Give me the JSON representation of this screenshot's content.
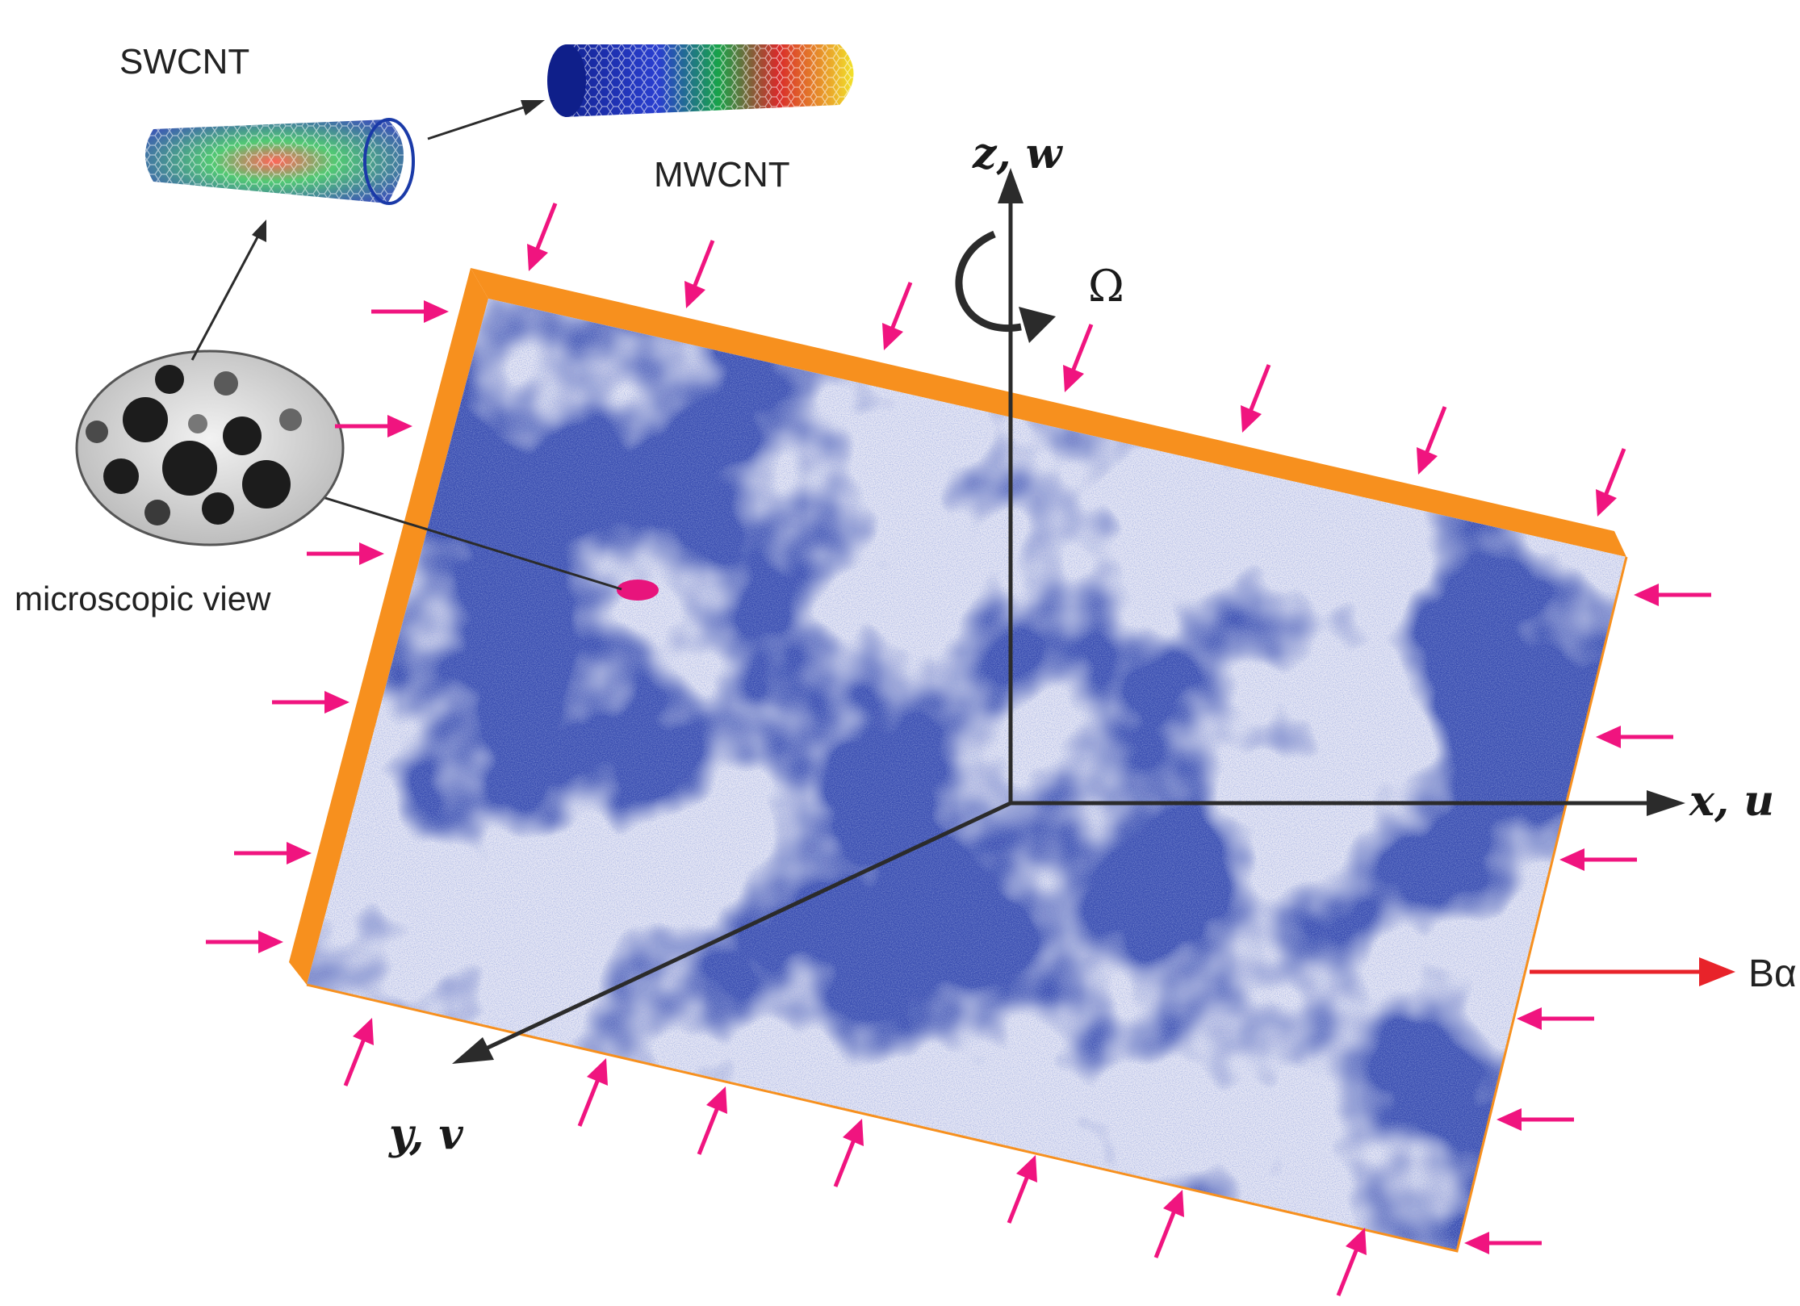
{
  "labels": {
    "swcnt": "SWCNT",
    "mwcnt": "MWCNT",
    "microscopic_view": "microscopic view",
    "z_axis": "z, w",
    "x_axis": "x, u",
    "y_axis": "y, v",
    "omega": "Ω",
    "field": "Bα"
  },
  "colors": {
    "plate_dark": "#3a4fb2",
    "plate_light": "#e7e8f5",
    "edge": "#f7901e",
    "load_arrow": "#f0147f",
    "field_arrow": "#e8232a",
    "axis": "#2b2b2b",
    "inclusion": "#e8147c"
  },
  "icons": {
    "swcnt": "single-walled-nanotube-icon",
    "mwcnt": "multi-walled-nanotube-icon",
    "micro": "microscope-circle-icon",
    "rotation": "rotation-arrow-icon"
  }
}
